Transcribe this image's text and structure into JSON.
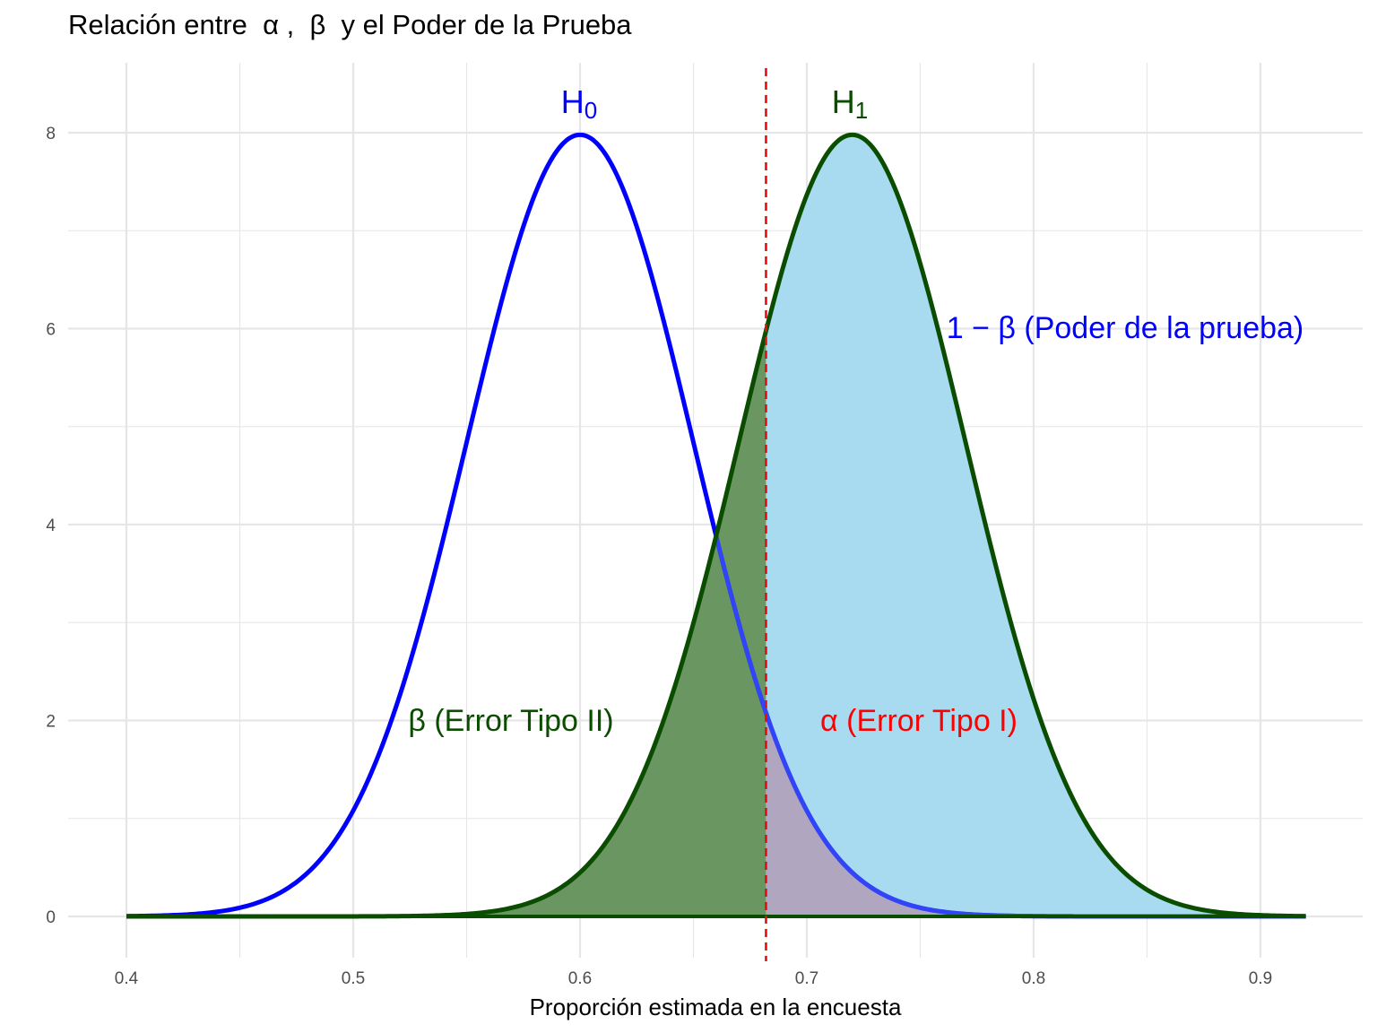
{
  "chart_data": {
    "type": "area",
    "title": "Relación entre  α ,  β  y el Poder de la Prueba",
    "xlabel": "Proporción estimada en la encuesta",
    "ylabel": "",
    "xlim": [
      0.4,
      0.92
    ],
    "ylim": [
      0,
      8
    ],
    "x_ticks": [
      0.4,
      0.5,
      0.6,
      0.7,
      0.8,
      0.9
    ],
    "x_tick_labels": [
      "0.4",
      "0.5",
      "0.6",
      "0.7",
      "0.8",
      "0.9"
    ],
    "y_ticks": [
      0,
      2,
      4,
      6,
      8
    ],
    "y_tick_labels": [
      "0",
      "2",
      "4",
      "6",
      "8"
    ],
    "grid": true,
    "critical_value": 0.682,
    "series": [
      {
        "name": "H0",
        "distribution": "normal",
        "mean": 0.6,
        "sd": 0.05,
        "color": "#0000ff"
      },
      {
        "name": "H1",
        "distribution": "normal",
        "mean": 0.72,
        "sd": 0.05,
        "color": "#0a4d00"
      }
    ],
    "regions": [
      {
        "label": "β (Error Tipo II)",
        "color": "#0a4d00"
      },
      {
        "label": "α (Error Tipo I)",
        "color": "#ff0000"
      },
      {
        "label": "1 − β (Poder de la prueba)",
        "color": "#0000ff"
      }
    ],
    "colors": {
      "beta_fill": "#6a9662",
      "power_fill": "#a9dbf0",
      "alpha_fill": "#b0a6c0",
      "critical_line": "#e01010",
      "grid": "#e6e6e6"
    }
  }
}
